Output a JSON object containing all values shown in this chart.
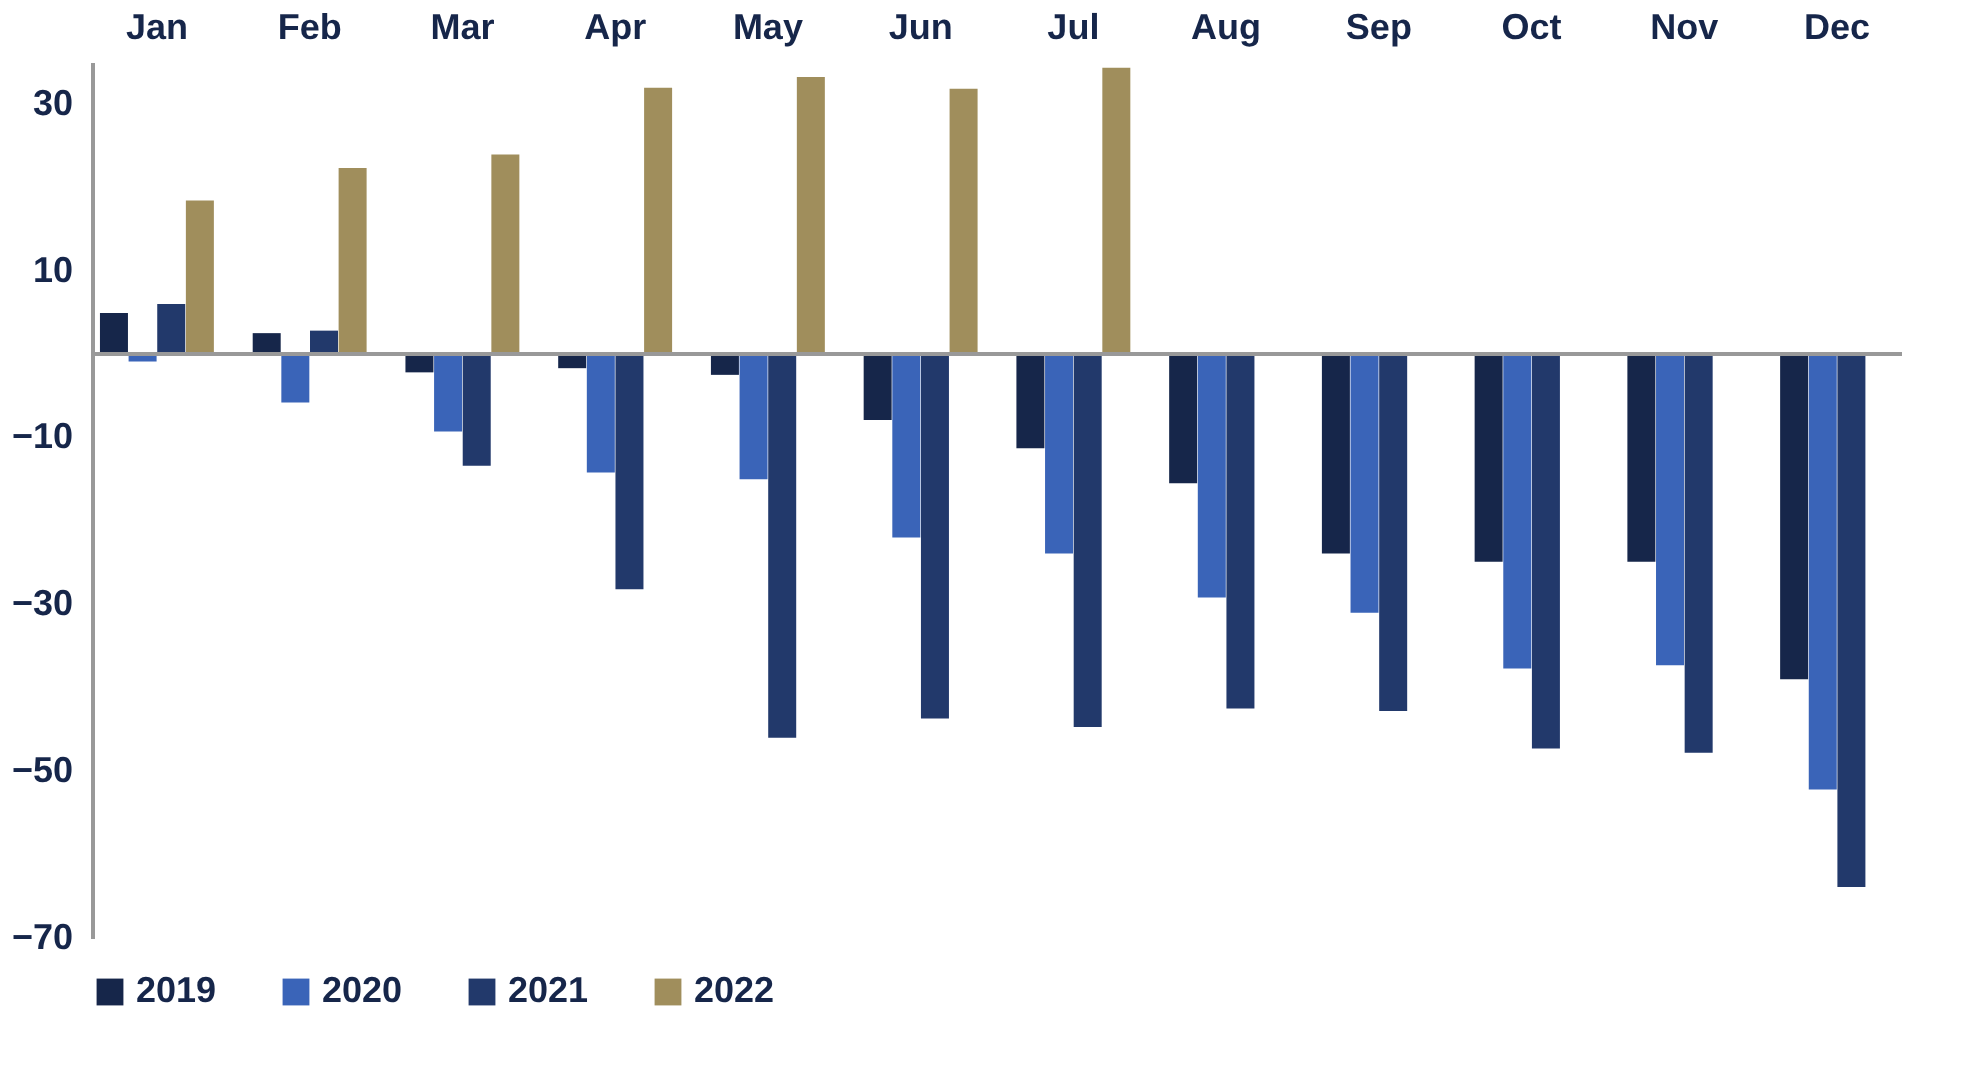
{
  "chart_data": {
    "type": "bar",
    "categories": [
      "Jan",
      "Feb",
      "Mar",
      "Apr",
      "May",
      "Jun",
      "Jul",
      "Aug",
      "Sep",
      "Oct",
      "Nov",
      "Dec"
    ],
    "series": [
      {
        "name": "2019",
        "color": "#16264a",
        "values": [
          4.9,
          2.5,
          -2.2,
          -1.7,
          -2.5,
          -7.9,
          -11.3,
          -15.5,
          -23.9,
          -24.9,
          -24.9,
          -39.0
        ]
      },
      {
        "name": "2020",
        "color": "#3a64b8",
        "values": [
          -0.9,
          -5.8,
          -9.3,
          -14.2,
          -15.0,
          -22.0,
          -23.9,
          -29.2,
          -31.0,
          -37.7,
          -37.3,
          -52.2
        ]
      },
      {
        "name": "2021",
        "color": "#22396b",
        "values": [
          6.0,
          2.8,
          -13.4,
          -28.2,
          -46.0,
          -43.7,
          -44.7,
          -42.5,
          -42.8,
          -47.3,
          -47.8,
          -63.9
        ]
      },
      {
        "name": "2022",
        "color": "#a08e5c",
        "values": [
          18.4,
          22.3,
          23.9,
          31.9,
          33.2,
          31.8,
          34.3,
          null,
          null,
          null,
          null,
          null
        ]
      }
    ],
    "ylim": [
      -70,
      35
    ],
    "yticks": [
      30,
      10,
      -10,
      -30,
      -50,
      -70
    ],
    "grid": false,
    "legend": "bottom"
  }
}
